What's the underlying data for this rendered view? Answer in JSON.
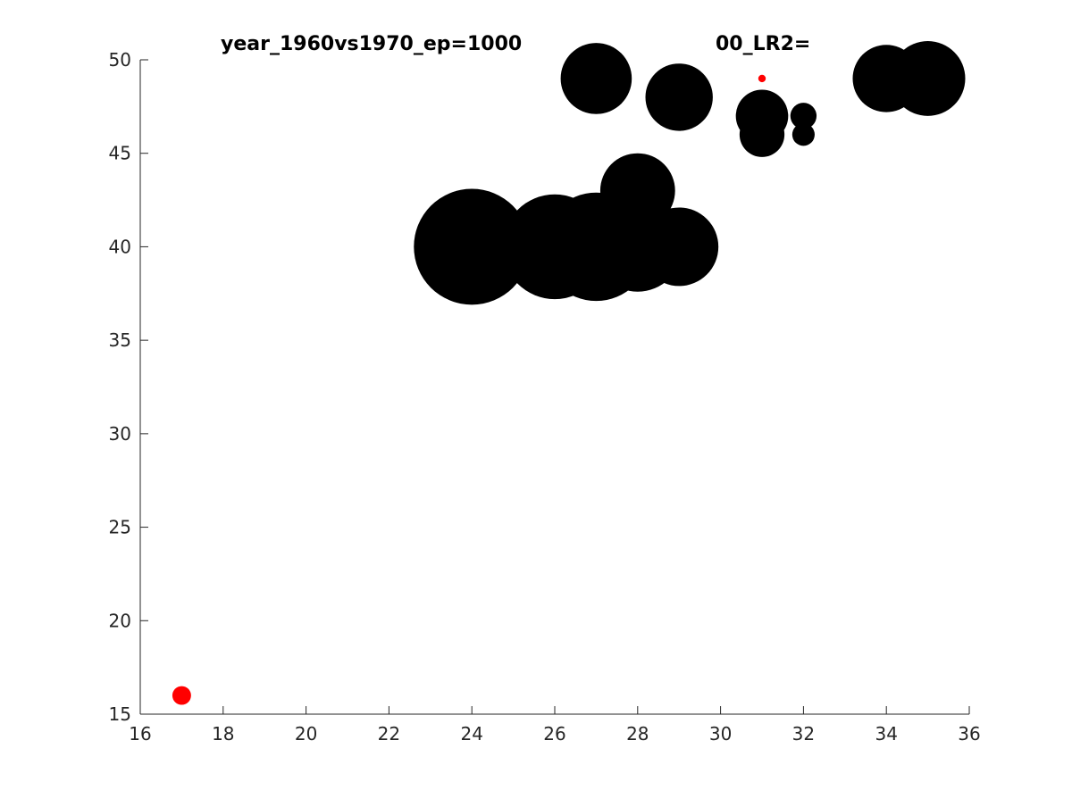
{
  "chart_data": {
    "type": "scatter",
    "title": "year_1960vs1970_ep=1000",
    "title_suffix_partial": "00_LR2=",
    "xlabel": "",
    "ylabel": "",
    "xlim": [
      16,
      36
    ],
    "ylim": [
      15,
      50
    ],
    "xticks": [
      16,
      18,
      20,
      22,
      24,
      26,
      28,
      30,
      32,
      34,
      36
    ],
    "yticks": [
      15,
      20,
      25,
      30,
      35,
      40,
      45,
      50
    ],
    "grid": false,
    "legend": "none",
    "series": [
      {
        "color": "#000000",
        "points": [
          {
            "x": 24,
            "y": 40,
            "size": 3.1
          },
          {
            "x": 26,
            "y": 40,
            "size": 2.8
          },
          {
            "x": 27,
            "y": 40,
            "size": 2.9
          },
          {
            "x": 28,
            "y": 40,
            "size": 2.4
          },
          {
            "x": 29,
            "y": 40,
            "size": 2.1
          },
          {
            "x": 28,
            "y": 43,
            "size": 2.0
          },
          {
            "x": 27,
            "y": 49,
            "size": 1.9
          },
          {
            "x": 29,
            "y": 48,
            "size": 1.8
          },
          {
            "x": 31,
            "y": 47,
            "size": 1.4
          },
          {
            "x": 31,
            "y": 46,
            "size": 1.2
          },
          {
            "x": 32,
            "y": 47,
            "size": 0.7
          },
          {
            "x": 32,
            "y": 46,
            "size": 0.6
          },
          {
            "x": 34,
            "y": 49,
            "size": 1.8
          },
          {
            "x": 35,
            "y": 49,
            "size": 2.0
          }
        ]
      },
      {
        "color": "#ff0000",
        "points": [
          {
            "x": 17,
            "y": 16,
            "size": 0.5
          },
          {
            "x": 31,
            "y": 49,
            "size": 0.2
          }
        ]
      }
    ]
  }
}
